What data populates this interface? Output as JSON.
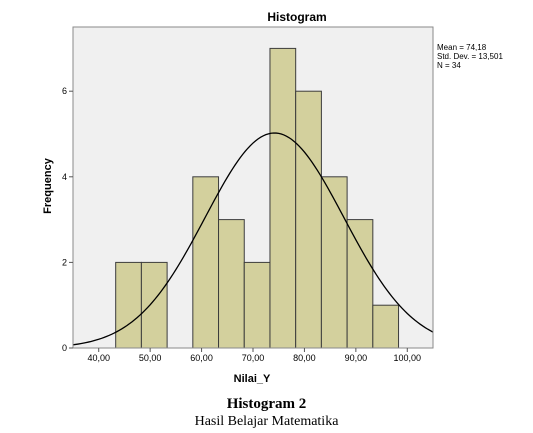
{
  "chart_data": {
    "type": "bar",
    "title": "Histogram",
    "xlabel": "Nilai_Y",
    "ylabel": "Frequency",
    "xlim": [
      35,
      105
    ],
    "ylim": [
      0,
      7.5
    ],
    "x_ticks": [
      "40,00",
      "50,00",
      "60,00",
      "70,00",
      "80,00",
      "90,00",
      "100,00"
    ],
    "x_tick_values": [
      40,
      50,
      60,
      70,
      80,
      90,
      100
    ],
    "y_ticks": [
      "0",
      "2",
      "4",
      "6"
    ],
    "y_tick_values": [
      0,
      2,
      4,
      6
    ],
    "bins": [
      {
        "x0": 43.3,
        "x1": 48.3,
        "count": 2
      },
      {
        "x0": 48.3,
        "x1": 53.3,
        "count": 2
      },
      {
        "x0": 58.3,
        "x1": 63.3,
        "count": 4
      },
      {
        "x0": 63.3,
        "x1": 68.3,
        "count": 3
      },
      {
        "x0": 68.3,
        "x1": 73.3,
        "count": 2
      },
      {
        "x0": 73.3,
        "x1": 78.3,
        "count": 7
      },
      {
        "x0": 78.3,
        "x1": 83.3,
        "count": 6
      },
      {
        "x0": 83.3,
        "x1": 88.3,
        "count": 4
      },
      {
        "x0": 88.3,
        "x1": 93.3,
        "count": 3
      },
      {
        "x0": 93.3,
        "x1": 98.3,
        "count": 1
      }
    ],
    "normal_curve": {
      "mean": 74.18,
      "std": 13.501,
      "n": 34,
      "bin_width": 5
    },
    "grid": false,
    "colors": {
      "bar_fill": "#d3d09d",
      "bar_stroke": "#3c3c3c",
      "plot_bg": "#f0f0f0",
      "curve": "#000000"
    }
  },
  "stats": {
    "mean": "Mean = 74,18",
    "std": "Std. Dev. = 13,501",
    "n": "N = 34"
  },
  "caption": {
    "title": "Histogram 2",
    "subtitle": "Hasil Belajar Matematika"
  }
}
